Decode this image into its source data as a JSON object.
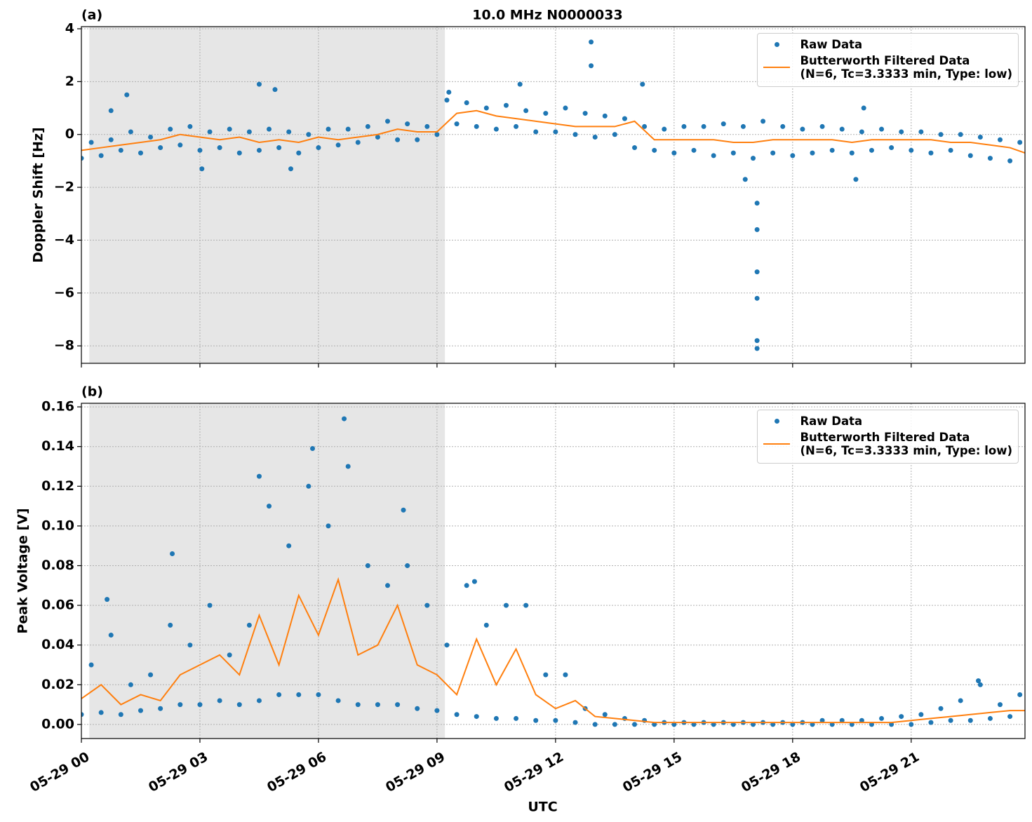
{
  "chart_data": [
    {
      "type": "scatter-line",
      "panel": "(a)",
      "title": "10.0 MHz N0000033",
      "y_label": "Doppler Shift [Hz]",
      "xlim": [
        0,
        23.88
      ],
      "ylim": [
        -8.66,
        4.08
      ],
      "xticks": [
        0,
        3,
        6,
        9,
        12,
        15,
        18,
        21
      ],
      "yticks": [
        {
          "value": -8,
          "label": "−8"
        },
        {
          "value": -6,
          "label": "−6"
        },
        {
          "value": -4,
          "label": "−4"
        },
        {
          "value": -2,
          "label": "−2"
        },
        0,
        2,
        4
      ],
      "grid": true,
      "shaded_span": [
        0.2,
        9.2
      ],
      "legend": "upper right",
      "series": [
        {
          "name": "Raw Data",
          "color": "#1f77b4",
          "marker": "dot",
          "x": [
            0,
            0.25,
            0.5,
            0.75,
            1,
            1.25,
            1.5,
            1.75,
            2,
            2.25,
            2.5,
            2.75,
            3,
            3.25,
            3.5,
            3.75,
            4,
            4.25,
            4.5,
            4.75,
            5,
            5.25,
            5.5,
            5.75,
            6,
            6.25,
            6.5,
            6.75,
            7,
            7.25,
            7.5,
            7.75,
            8,
            8.25,
            8.5,
            8.75,
            9,
            9.25,
            9.5,
            9.75,
            10,
            10.25,
            10.5,
            10.75,
            11,
            11.25,
            11.5,
            11.75,
            12,
            12.25,
            12.5,
            12.75,
            13,
            13.25,
            13.5,
            13.75,
            14,
            14.25,
            14.5,
            14.75,
            15,
            15.25,
            15.5,
            15.75,
            16,
            16.25,
            16.5,
            16.75,
            17,
            17.25,
            17.5,
            17.75,
            18,
            18.25,
            18.5,
            18.75,
            19,
            19.25,
            19.5,
            19.75,
            20,
            20.25,
            20.5,
            20.75,
            21,
            21.25,
            21.5,
            21.75,
            22,
            22.25,
            22.5,
            22.75,
            23,
            23.25,
            23.5,
            23.75,
            0.75,
            1.15,
            4.5,
            4.9,
            9.3,
            11.1,
            12.9,
            12.9,
            14.2,
            17.1,
            17.1,
            17.1,
            17.1,
            17.1,
            17.1,
            16.8,
            19.6,
            5.3,
            3.05,
            19.8
          ],
          "values": [
            -0.9,
            -0.3,
            -0.8,
            -0.2,
            -0.6,
            0.1,
            -0.7,
            -0.1,
            -0.5,
            0.2,
            -0.4,
            0.3,
            -0.6,
            0.1,
            -0.5,
            0.2,
            -0.7,
            0.1,
            -0.6,
            0.2,
            -0.5,
            0.1,
            -0.7,
            0.0,
            -0.5,
            0.2,
            -0.4,
            0.2,
            -0.3,
            0.3,
            -0.1,
            0.5,
            -0.2,
            0.4,
            -0.2,
            0.3,
            0.0,
            1.3,
            0.4,
            1.2,
            0.3,
            1.0,
            0.2,
            1.1,
            0.3,
            0.9,
            0.1,
            0.8,
            0.1,
            1.0,
            0.0,
            0.8,
            -0.1,
            0.7,
            0.0,
            0.6,
            -0.5,
            0.3,
            -0.6,
            0.2,
            -0.7,
            0.3,
            -0.6,
            0.3,
            -0.8,
            0.4,
            -0.7,
            0.3,
            -0.9,
            0.5,
            -0.7,
            0.3,
            -0.8,
            0.2,
            -0.7,
            0.3,
            -0.6,
            0.2,
            -0.7,
            0.1,
            -0.6,
            0.2,
            -0.5,
            0.1,
            -0.6,
            0.1,
            -0.7,
            0.0,
            -0.6,
            0.0,
            -0.8,
            -0.1,
            -0.9,
            -0.2,
            -1.0,
            -0.3,
            0.9,
            1.5,
            1.9,
            1.7,
            1.6,
            1.9,
            3.5,
            2.6,
            1.9,
            -2.6,
            -3.6,
            -5.2,
            -6.2,
            -7.8,
            -8.1,
            -1.7,
            -1.7,
            -1.3,
            -1.3,
            1.0
          ]
        },
        {
          "name": "Butterworth Filtered Data\n(N=6, Tc=3.3333 min, Type: low)",
          "color": "#ff7f0e",
          "marker": "line",
          "x": [
            0,
            0.5,
            1,
            1.5,
            2,
            2.5,
            3,
            3.5,
            4,
            4.5,
            5,
            5.5,
            6,
            6.5,
            7,
            7.5,
            8,
            8.5,
            9,
            9.5,
            10,
            10.5,
            11,
            11.5,
            12,
            12.5,
            13,
            13.5,
            14,
            14.5,
            15,
            15.5,
            16,
            16.5,
            17,
            17.5,
            18,
            18.5,
            19,
            19.5,
            20,
            20.5,
            21,
            21.5,
            22,
            22.5,
            23,
            23.5,
            23.88
          ],
          "values": [
            -0.6,
            -0.5,
            -0.4,
            -0.3,
            -0.2,
            0.0,
            -0.1,
            -0.2,
            -0.1,
            -0.3,
            -0.2,
            -0.3,
            -0.1,
            -0.2,
            -0.1,
            0.0,
            0.2,
            0.1,
            0.1,
            0.8,
            0.9,
            0.7,
            0.6,
            0.5,
            0.4,
            0.3,
            0.3,
            0.3,
            0.5,
            -0.2,
            -0.2,
            -0.2,
            -0.2,
            -0.3,
            -0.3,
            -0.2,
            -0.2,
            -0.2,
            -0.2,
            -0.3,
            -0.2,
            -0.2,
            -0.2,
            -0.2,
            -0.3,
            -0.3,
            -0.4,
            -0.5,
            -0.7
          ]
        }
      ]
    },
    {
      "type": "scatter-line",
      "panel": "(b)",
      "x_label": "UTC",
      "y_label": "Peak Voltage [V]",
      "xlim": [
        0,
        23.88
      ],
      "ylim": [
        -0.0071,
        0.1618
      ],
      "xticks": [
        {
          "value": 0,
          "label": "05-29 00"
        },
        {
          "value": 3,
          "label": "05-29 03"
        },
        {
          "value": 6,
          "label": "05-29 06"
        },
        {
          "value": 9,
          "label": "05-29 09"
        },
        {
          "value": 12,
          "label": "05-29 12"
        },
        {
          "value": 15,
          "label": "05-29 15"
        },
        {
          "value": 18,
          "label": "05-29 18"
        },
        {
          "value": 21,
          "label": "05-29 21"
        }
      ],
      "yticks": [
        {
          "value": 0,
          "label": "0.00"
        },
        {
          "value": 0.02,
          "label": "0.02"
        },
        {
          "value": 0.04,
          "label": "0.04"
        },
        {
          "value": 0.06,
          "label": "0.06"
        },
        {
          "value": 0.08,
          "label": "0.08"
        },
        {
          "value": 0.1,
          "label": "0.10"
        },
        {
          "value": 0.12,
          "label": "0.12"
        },
        {
          "value": 0.14,
          "label": "0.14"
        },
        {
          "value": 0.16,
          "label": "0.16"
        }
      ],
      "grid": true,
      "shaded_span": [
        0.2,
        9.2
      ],
      "legend": "upper right",
      "series": [
        {
          "name": "Raw Data",
          "color": "#1f77b4",
          "marker": "dot",
          "x": [
            0,
            0.25,
            0.5,
            0.75,
            1,
            1.25,
            1.5,
            1.75,
            2,
            2.25,
            2.5,
            2.75,
            3,
            3.25,
            3.5,
            3.75,
            4,
            4.25,
            4.5,
            4.75,
            5,
            5.25,
            5.5,
            5.75,
            6,
            6.25,
            6.5,
            6.75,
            7,
            7.25,
            7.5,
            7.75,
            8,
            8.25,
            8.5,
            8.75,
            9,
            9.25,
            9.5,
            9.75,
            10,
            10.25,
            10.5,
            10.75,
            11,
            11.25,
            11.5,
            11.75,
            12,
            12.25,
            12.5,
            12.75,
            13,
            13.25,
            13.5,
            13.75,
            14,
            14.25,
            14.5,
            14.75,
            15,
            15.25,
            15.5,
            15.75,
            16,
            16.25,
            16.5,
            16.75,
            17,
            17.25,
            17.5,
            17.75,
            18,
            18.25,
            18.5,
            18.75,
            19,
            19.25,
            19.5,
            19.75,
            20,
            20.25,
            20.5,
            20.75,
            21,
            21.25,
            21.5,
            21.75,
            22,
            22.25,
            22.5,
            22.75,
            23,
            23.25,
            23.5,
            23.75,
            6.65,
            5.85,
            4.5,
            2.3,
            0.65,
            8.15,
            9.95,
            22.7
          ],
          "values": [
            0.005,
            0.03,
            0.006,
            0.045,
            0.005,
            0.02,
            0.007,
            0.025,
            0.008,
            0.05,
            0.01,
            0.04,
            0.01,
            0.06,
            0.012,
            0.035,
            0.01,
            0.05,
            0.012,
            0.11,
            0.015,
            0.09,
            0.015,
            0.12,
            0.015,
            0.1,
            0.012,
            0.13,
            0.01,
            0.08,
            0.01,
            0.07,
            0.01,
            0.08,
            0.008,
            0.06,
            0.007,
            0.04,
            0.005,
            0.07,
            0.004,
            0.05,
            0.003,
            0.06,
            0.003,
            0.06,
            0.002,
            0.025,
            0.002,
            0.025,
            0.001,
            0.008,
            0.0,
            0.005,
            0.0,
            0.003,
            0.0,
            0.002,
            0.0,
            0.001,
            0.0,
            0.001,
            0.0,
            0.001,
            0.0,
            0.001,
            0.0,
            0.001,
            0.0,
            0.001,
            0.0,
            0.001,
            0.0,
            0.001,
            0.0,
            0.002,
            0.0,
            0.002,
            0.0,
            0.002,
            0.0,
            0.003,
            0.0,
            0.004,
            0.0,
            0.005,
            0.001,
            0.008,
            0.002,
            0.012,
            0.002,
            0.02,
            0.003,
            0.01,
            0.004,
            0.015,
            0.154,
            0.139,
            0.125,
            0.086,
            0.063,
            0.108,
            0.072,
            0.022
          ]
        },
        {
          "name": "Butterworth Filtered Data\n(N=6, Tc=3.3333 min, Type: low)",
          "color": "#ff7f0e",
          "marker": "line",
          "x": [
            0,
            0.5,
            1,
            1.5,
            2,
            2.5,
            3,
            3.5,
            4,
            4.5,
            5,
            5.5,
            6,
            6.5,
            7,
            7.5,
            8,
            8.5,
            9,
            9.5,
            10,
            10.5,
            11,
            11.5,
            12,
            12.5,
            13,
            13.5,
            14,
            14.5,
            15,
            15.5,
            16,
            16.5,
            17,
            17.5,
            18,
            18.5,
            19,
            19.5,
            20,
            20.5,
            21,
            21.5,
            22,
            22.5,
            23,
            23.5,
            23.88
          ],
          "values": [
            0.013,
            0.02,
            0.01,
            0.015,
            0.012,
            0.025,
            0.03,
            0.035,
            0.025,
            0.055,
            0.03,
            0.065,
            0.045,
            0.073,
            0.035,
            0.04,
            0.06,
            0.03,
            0.025,
            0.015,
            0.043,
            0.02,
            0.038,
            0.015,
            0.008,
            0.012,
            0.004,
            0.003,
            0.002,
            0.001,
            0.001,
            0.001,
            0.001,
            0.001,
            0.001,
            0.001,
            0.001,
            0.001,
            0.001,
            0.001,
            0.001,
            0.001,
            0.002,
            0.003,
            0.004,
            0.005,
            0.006,
            0.007,
            0.007
          ]
        }
      ]
    }
  ]
}
